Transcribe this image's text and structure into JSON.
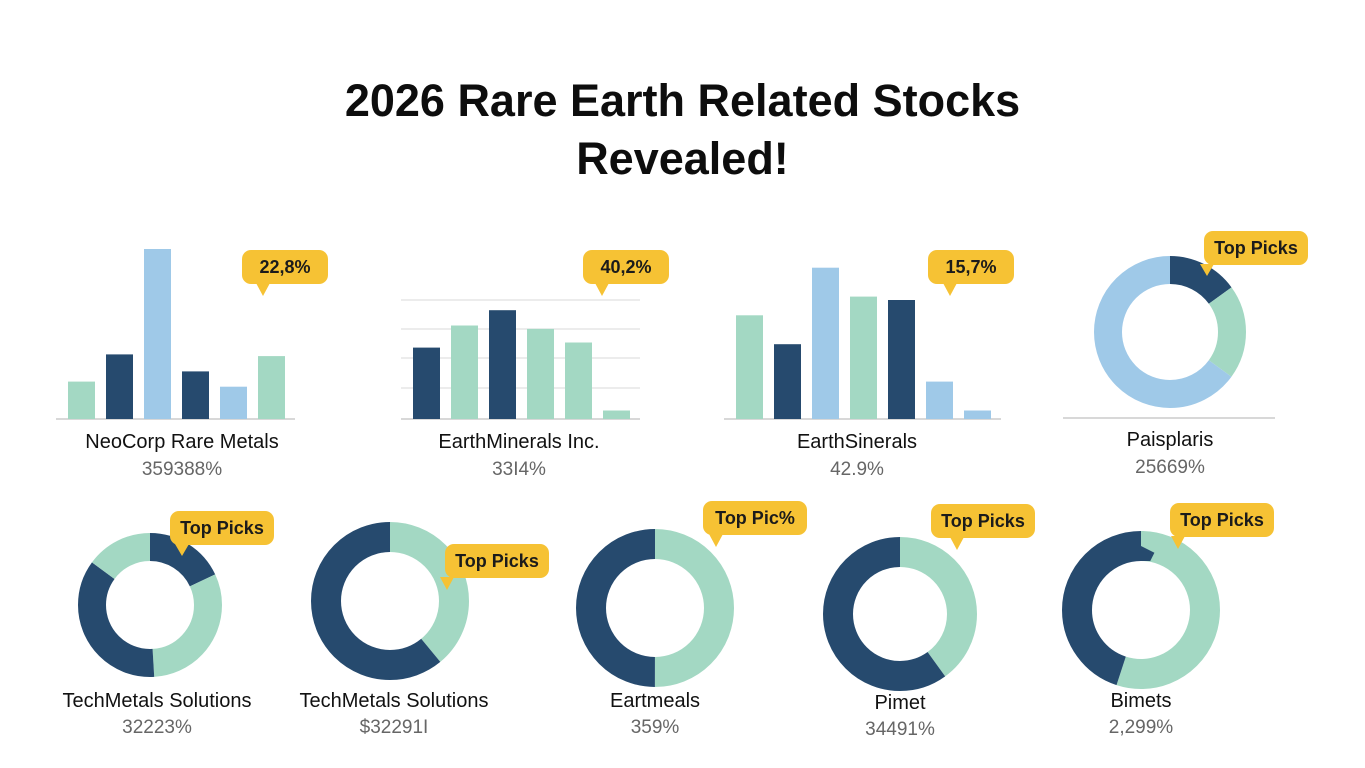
{
  "page": {
    "title_line1": "2026 Rare Earth Related Stocks",
    "title_line2": "Revealed!"
  },
  "colors": {
    "navy": "#264a6e",
    "light_blue": "#9fc9e8",
    "mint": "#a3d8c3",
    "badge": "#f6c234",
    "axis": "#cccccc"
  },
  "chart_data": [
    {
      "type": "bar",
      "name": "NeoCorp Rare Metals",
      "value_label": "359388%",
      "badge": "22,8%",
      "gridlines": false,
      "values": [
        22,
        38,
        100,
        28,
        19,
        37
      ],
      "colors": [
        "mint",
        "navy",
        "light_blue",
        "navy",
        "light_blue",
        "mint"
      ]
    },
    {
      "type": "bar",
      "name": "EarthMinerals Inc.",
      "value_label": "33I4%",
      "badge": "40,2%",
      "gridlines": true,
      "values": [
        42,
        55,
        64,
        53,
        45,
        5
      ],
      "colors": [
        "navy",
        "mint",
        "navy",
        "mint",
        "mint",
        "mint"
      ]
    },
    {
      "type": "bar",
      "name": "EarthSinerals",
      "value_label": "42.9%",
      "badge": "15,7%",
      "gridlines": false,
      "values": [
        61,
        44,
        89,
        72,
        70,
        22,
        5
      ],
      "colors": [
        "mint",
        "navy",
        "light_blue",
        "mint",
        "navy",
        "light_blue",
        "light_blue"
      ]
    },
    {
      "type": "pie",
      "name": "Paisplaris",
      "value_label": "25669%",
      "badge": "Top Picks",
      "slices": [
        {
          "value": 15,
          "color": "navy"
        },
        {
          "value": 20,
          "color": "mint"
        },
        {
          "value": 65,
          "color": "light_blue"
        }
      ]
    },
    {
      "type": "pie",
      "name": "TechMetals Solutions",
      "value_label": "32223%",
      "badge": "Top Picks",
      "slices": [
        {
          "value": 18,
          "color": "navy"
        },
        {
          "value": 31,
          "color": "mint"
        },
        {
          "value": 36,
          "color": "navy"
        },
        {
          "value": 15,
          "color": "mint"
        }
      ]
    },
    {
      "type": "pie",
      "name": "TechMetals Solutions",
      "value_label": "$32291I",
      "badge": "Top Picks",
      "slices": [
        {
          "value": 39,
          "color": "mint"
        },
        {
          "value": 61,
          "color": "navy"
        }
      ]
    },
    {
      "type": "pie",
      "name": "Eartmeals",
      "value_label": "359%",
      "badge": "Top Pic%",
      "slices": [
        {
          "value": 50,
          "color": "mint"
        },
        {
          "value": 50,
          "color": "navy"
        }
      ]
    },
    {
      "type": "pie",
      "name": "Pimet",
      "value_label": "34491%",
      "badge": "Top Picks",
      "slices": [
        {
          "value": 40,
          "color": "mint"
        },
        {
          "value": 60,
          "color": "navy"
        }
      ]
    },
    {
      "type": "pie",
      "name": "Bimets",
      "value_label": "2,299%",
      "badge": "Top Picks",
      "slices": [
        {
          "value": 55,
          "color": "mint"
        },
        {
          "value": 45,
          "color": "navy"
        }
      ]
    }
  ]
}
